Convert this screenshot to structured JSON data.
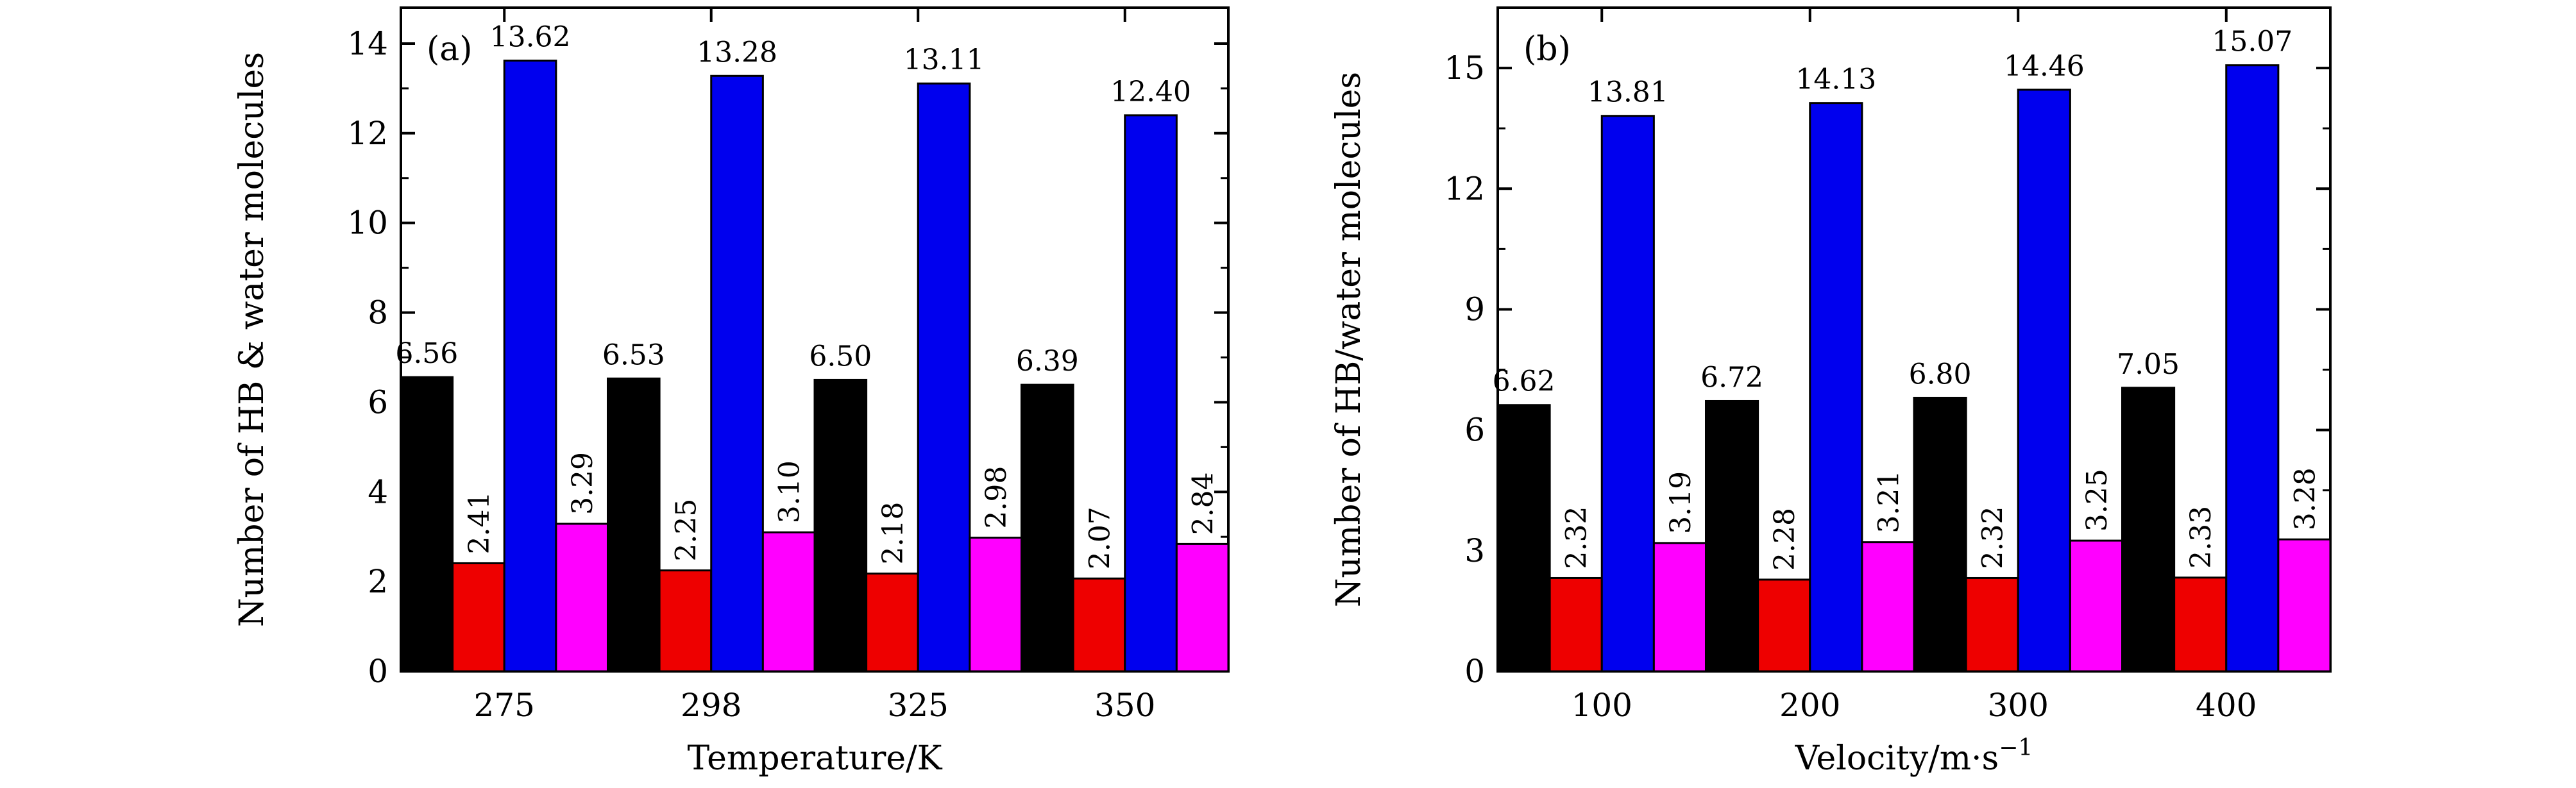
{
  "chart_data": [
    {
      "type": "bar",
      "panel_label": "(a)",
      "xlabel": "Temperature/K",
      "ylabel": "Number of HB & water molecules",
      "ylim": [
        0,
        14.8
      ],
      "yticks": [
        0,
        2,
        4,
        6,
        8,
        10,
        12,
        14
      ],
      "ytick_labels": [
        "0",
        "2",
        "4",
        "6",
        "8",
        "10",
        "12",
        "14"
      ],
      "categories": [
        "275",
        "298",
        "325",
        "350"
      ],
      "series": [
        {
          "values": [
            6.56,
            6.53,
            6.5,
            6.39
          ],
          "labels": [
            "6.56",
            "6.53",
            "6.50",
            "6.39"
          ],
          "color": "#000000"
        },
        {
          "values": [
            2.41,
            2.25,
            2.18,
            2.07
          ],
          "labels": [
            "2.41",
            "2.25",
            "2.18",
            "2.07"
          ],
          "color": "#ee0000"
        },
        {
          "values": [
            13.62,
            13.28,
            13.11,
            12.4
          ],
          "labels": [
            "13.62",
            "13.28",
            "13.11",
            "12.40"
          ],
          "color": "#0000ee"
        },
        {
          "values": [
            3.29,
            3.1,
            2.98,
            2.84
          ],
          "labels": [
            "3.29",
            "3.10",
            "2.98",
            "2.84"
          ],
          "color": "#ff00ff"
        }
      ],
      "grid": false
    },
    {
      "type": "bar",
      "panel_label": "(b)",
      "xlabel": "Velocity/m·s",
      "xlabel_sup": "−1",
      "ylabel": "Number of HB/water molecules",
      "ylim": [
        0,
        16.5
      ],
      "yticks": [
        0,
        3,
        6,
        9,
        12,
        15
      ],
      "ytick_labels": [
        "0",
        "3",
        "6",
        "9",
        "12",
        "15"
      ],
      "categories": [
        "100",
        "200",
        "300",
        "400"
      ],
      "series": [
        {
          "values": [
            6.62,
            6.72,
            6.8,
            7.05
          ],
          "labels": [
            "6.62",
            "6.72",
            "6.80",
            "7.05"
          ],
          "color": "#000000"
        },
        {
          "values": [
            2.32,
            2.28,
            2.32,
            2.33
          ],
          "labels": [
            "2.32",
            "2.28",
            "2.32",
            "2.33"
          ],
          "color": "#ee0000"
        },
        {
          "values": [
            13.81,
            14.13,
            14.46,
            15.07
          ],
          "labels": [
            "13.81",
            "14.13",
            "14.46",
            "15.07"
          ],
          "color": "#0000ee"
        },
        {
          "values": [
            3.19,
            3.21,
            3.25,
            3.28
          ],
          "labels": [
            "3.19",
            "3.21",
            "3.25",
            "3.28"
          ],
          "color": "#ff00ff"
        }
      ],
      "grid": false
    }
  ]
}
